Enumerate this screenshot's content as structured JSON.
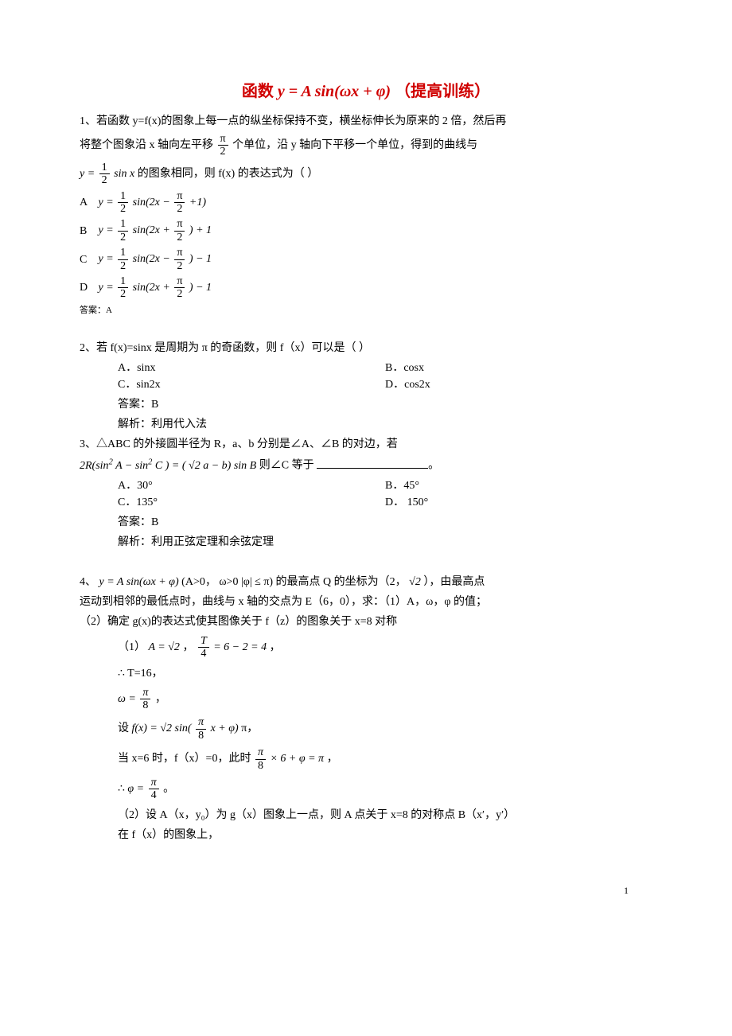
{
  "title": {
    "func_part_prefix": "函数",
    "func_formula": "y = A sin(ωx + φ)",
    "suffix": "（提高训练）"
  },
  "q1": {
    "stem_line1": "1、若函数 y=f(x)的图象上每一点的纵坐标保持不变，横坐标伸长为原来的 2 倍，然后再",
    "stem_line2_pre": "将整个图象沿 x 轴向左平移",
    "stem_line2_frac_num": "π",
    "stem_line2_frac_den": "2",
    "stem_line2_post": "个单位，沿 y 轴向下平移一个单位，得到的曲线与",
    "stem_line3_pre": "y =",
    "stem_line3_frac_num": "1",
    "stem_line3_frac_den": "2",
    "stem_line3_mid": "sin x",
    "stem_line3_post": "的图象相同，则 f(x) 的表达式为（  ）",
    "options": {
      "A": {
        "lhs": "y =",
        "coef_num": "1",
        "coef_den": "2",
        "mid": "sin(2x −",
        "shift_num": "π",
        "shift_den": "2",
        "tail": "+1)"
      },
      "B": {
        "lhs": "y =",
        "coef_num": "1",
        "coef_den": "2",
        "mid": "sin(2x +",
        "shift_num": "π",
        "shift_den": "2",
        "tail": ") + 1"
      },
      "C": {
        "lhs": "y =",
        "coef_num": "1",
        "coef_den": "2",
        "mid": "sin(2x −",
        "shift_num": "π",
        "shift_den": "2",
        "tail": ") − 1"
      },
      "D": {
        "lhs": "y =",
        "coef_num": "1",
        "coef_den": "2",
        "mid": "sin(2x +",
        "shift_num": "π",
        "shift_den": "2",
        "tail": ") − 1"
      }
    },
    "answer": "答案：A"
  },
  "q2": {
    "stem": "2、若 f(x)=sinx 是周期为 π 的奇函数，则 f（x）可以是（  ）",
    "A": "A．sinx",
    "B": "B．cosx",
    "C": "C．sin2x",
    "D": "D．cos2x",
    "answer": "答案：B",
    "explain": "解析：利用代入法"
  },
  "q3": {
    "stem": "3、△ABC 的外接圆半径为 R，a、b 分别是∠A、∠B 的对边，若",
    "formula_pre": "2R(sin",
    "formula_A": "A",
    "formula_minus": " − sin",
    "formula_C": "C",
    "formula_eq": ") = (",
    "formula_sqrt2": "√2",
    "formula_tail": "a − b) sin B",
    "formula_post": "则∠C 等于",
    "A": "A．30°",
    "B": "B．45°",
    "C": "C．135°",
    "D": "D．  150°",
    "answer": "答案：B",
    "explain": "解析：利用正弦定理和余弦定理"
  },
  "q4": {
    "stem_line1_pre": "4、",
    "stem_line1_formula": "y = A sin(ωx + φ)",
    "stem_line1_mid": "(A>0， ω>0  |φ| ≤ π) 的最高点 Q 的坐标为（2，",
    "stem_line1_sqrt2": "√2",
    "stem_line1_post": "），由最高点",
    "stem_line2": "运动到相邻的最低点时，曲线与 x 轴的交点为 E（6，0），求：（1）A，ω，φ 的值；",
    "stem_line3": "（2）确定 g(x)的表达式使其图像关于 f（z）的图象关于 x=8 对称",
    "sol": {
      "s1_pre": "（1）",
      "s1_A": "A = √2",
      "s1_comma": "，",
      "s1_T_num": "T",
      "s1_T_den": "4",
      "s1_T_rhs": " = 6 − 2 = 4",
      "s1_tail": "，",
      "s2": "∴ T=16，",
      "s3_lhs": "ω =",
      "s3_num": "π",
      "s3_den": "8",
      "s3_tail": "，",
      "s4_pre": "设",
      "s4_formula": "f(x) = √2 sin(",
      "s4_num": "π",
      "s4_den": "8",
      "s4_mid": "x + φ)",
      "s4_tail": "π，",
      "s5_pre": "当 x=6 时，f（x）=0，此时",
      "s5_num": "π",
      "s5_den": "8",
      "s5_rhs": "× 6 + φ = π",
      "s5_tail": "，",
      "s6_pre": "∴",
      "s6_lhs": "φ =",
      "s6_num": "π",
      "s6_den": "4",
      "s6_tail": "。",
      "s7": "（2）设 A（x，y₀）为 g（x）图象上一点，则 A 点关于 x=8 的对称点 B（x′，y′）",
      "s8": "在 f（x）的图象上，"
    }
  },
  "page_num": "1"
}
